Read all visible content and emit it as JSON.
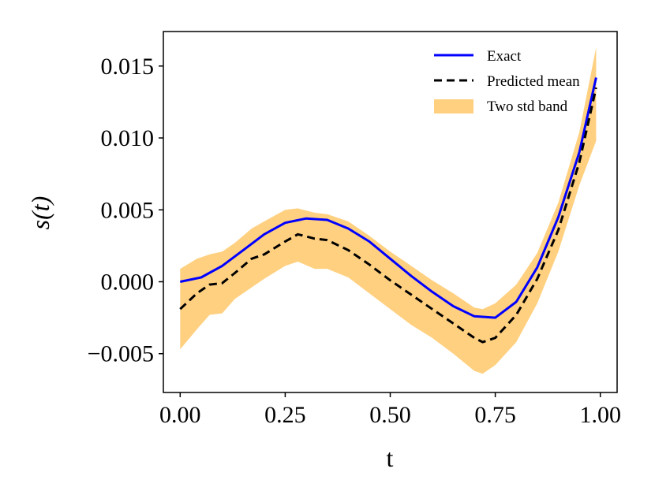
{
  "chart_data": {
    "type": "line",
    "title": "",
    "xlabel": "t",
    "ylabel": "s(t)",
    "xlim": [
      -0.04,
      1.04
    ],
    "ylim": [
      -0.0077,
      0.0174
    ],
    "xticks": [
      0.0,
      0.25,
      0.5,
      0.75,
      1.0
    ],
    "xtick_labels": [
      "0.00",
      "0.25",
      "0.50",
      "0.75",
      "1.00"
    ],
    "yticks": [
      -0.005,
      0.0,
      0.005,
      0.01,
      0.015
    ],
    "ytick_labels": [
      "−0.005",
      "0.000",
      "0.005",
      "0.010",
      "0.015"
    ],
    "grid": false,
    "legend_position": "top-right",
    "series": [
      {
        "name": "Exact",
        "style": "solid",
        "color": "#0000ff",
        "x": [
          0.0,
          0.05,
          0.1,
          0.15,
          0.2,
          0.25,
          0.3,
          0.35,
          0.4,
          0.45,
          0.5,
          0.55,
          0.6,
          0.65,
          0.7,
          0.75,
          0.8,
          0.85,
          0.9,
          0.95,
          0.99
        ],
        "y": [
          0.0,
          0.0003,
          0.0011,
          0.0022,
          0.0033,
          0.0041,
          0.0044,
          0.0043,
          0.0037,
          0.0028,
          0.0016,
          0.0004,
          -0.0007,
          -0.0017,
          -0.0024,
          -0.0025,
          -0.0014,
          0.001,
          0.0045,
          0.009,
          0.0142
        ]
      },
      {
        "name": "Predicted mean",
        "style": "dashed",
        "color": "#000000",
        "x": [
          0.0,
          0.04,
          0.07,
          0.1,
          0.13,
          0.17,
          0.2,
          0.25,
          0.28,
          0.32,
          0.35,
          0.4,
          0.45,
          0.5,
          0.55,
          0.6,
          0.65,
          0.7,
          0.72,
          0.75,
          0.8,
          0.85,
          0.9,
          0.95,
          0.99
        ],
        "y": [
          -0.0019,
          -0.0008,
          -0.0002,
          -0.0001,
          0.0006,
          0.0016,
          0.0019,
          0.0028,
          0.0033,
          0.003,
          0.0029,
          0.0022,
          0.0012,
          0.0001,
          -0.0009,
          -0.0019,
          -0.0029,
          -0.0039,
          -0.0042,
          -0.0039,
          -0.0023,
          0.0002,
          0.0036,
          0.0083,
          0.0135
        ]
      },
      {
        "name": "Two std band",
        "style": "band",
        "color": "#ffd080",
        "x": [
          0.0,
          0.04,
          0.07,
          0.1,
          0.13,
          0.17,
          0.2,
          0.25,
          0.28,
          0.32,
          0.35,
          0.4,
          0.45,
          0.5,
          0.55,
          0.6,
          0.65,
          0.7,
          0.72,
          0.75,
          0.8,
          0.85,
          0.9,
          0.95,
          0.99
        ],
        "lower": [
          -0.0047,
          -0.0033,
          -0.0023,
          -0.0022,
          -0.0012,
          -0.0004,
          0.0002,
          0.0011,
          0.0014,
          0.0009,
          0.0009,
          0.0003,
          -0.0008,
          -0.0019,
          -0.003,
          -0.0039,
          -0.005,
          -0.0062,
          -0.0064,
          -0.0058,
          -0.0042,
          -0.0015,
          0.0021,
          0.0067,
          0.0098
        ],
        "upper": [
          0.0009,
          0.0016,
          0.0019,
          0.0021,
          0.0027,
          0.0037,
          0.0042,
          0.005,
          0.0051,
          0.0048,
          0.0047,
          0.0042,
          0.0032,
          0.0021,
          0.0011,
          0.0001,
          -0.0008,
          -0.0018,
          -0.0019,
          -0.0015,
          -0.0002,
          0.002,
          0.0055,
          0.0104,
          0.0163
        ]
      }
    ]
  }
}
